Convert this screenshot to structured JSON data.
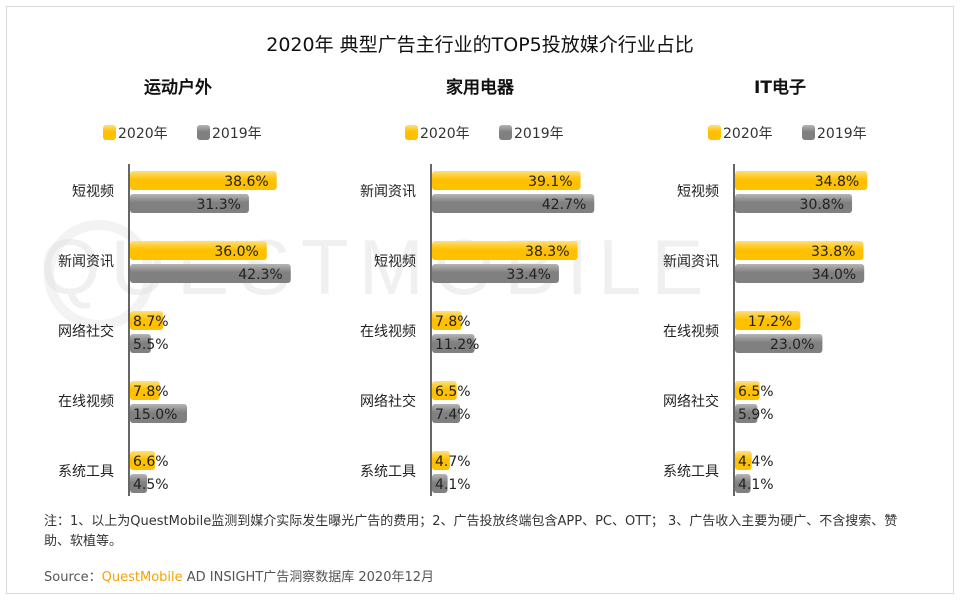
{
  "title": "2020年 典型广告主行业的TOP5投放媒介行业占比",
  "watermark": "QUESTMOBILE",
  "footnote": "注：1、以上为QuestMobile监测到媒介实际发生曝光广告的费用；2、广告投放终端包含APP、PC、OTT； 3、广告收入主要为硬广、不含搜索、赞助、软植等。",
  "source": {
    "prefix": "Source：",
    "brand": "QuestMobile",
    "rest": " AD INSIGHT广告洞察数据库 2020年12月"
  },
  "colors": {
    "y2020": "#ffc000",
    "y2020_light": "#ffe07a",
    "y2019": "#808080",
    "y2019_light": "#b5b5b5",
    "axis": "#333333"
  },
  "chart_data": [
    {
      "type": "bar",
      "orientation": "horizontal",
      "title": "运动户外",
      "legend": [
        "2020年",
        "2019年"
      ],
      "categories": [
        "短视频",
        "新闻资讯",
        "网络社交",
        "在线视频",
        "系统工具"
      ],
      "series": [
        {
          "name": "2020年",
          "values": [
            38.6,
            36.0,
            8.7,
            7.8,
            6.6
          ]
        },
        {
          "name": "2019年",
          "values": [
            31.3,
            42.3,
            5.5,
            15.0,
            4.5
          ]
        }
      ],
      "unit": "%"
    },
    {
      "type": "bar",
      "orientation": "horizontal",
      "title": "家用电器",
      "legend": [
        "2020年",
        "2019年"
      ],
      "categories": [
        "新闻资讯",
        "短视频",
        "在线视频",
        "网络社交",
        "系统工具"
      ],
      "series": [
        {
          "name": "2020年",
          "values": [
            39.1,
            38.3,
            7.8,
            6.5,
            4.7
          ]
        },
        {
          "name": "2019年",
          "values": [
            42.7,
            33.4,
            11.2,
            7.4,
            4.1
          ]
        }
      ],
      "unit": "%"
    },
    {
      "type": "bar",
      "orientation": "horizontal",
      "title": "IT电子",
      "legend": [
        "2020年",
        "2019年"
      ],
      "categories": [
        "短视频",
        "新闻资讯",
        "在线视频",
        "网络社交",
        "系统工具"
      ],
      "series": [
        {
          "name": "2020年",
          "values": [
            34.8,
            33.8,
            17.2,
            6.5,
            4.4
          ]
        },
        {
          "name": "2019年",
          "values": [
            30.8,
            34.0,
            23.0,
            5.9,
            4.1
          ]
        }
      ],
      "unit": "%"
    }
  ]
}
